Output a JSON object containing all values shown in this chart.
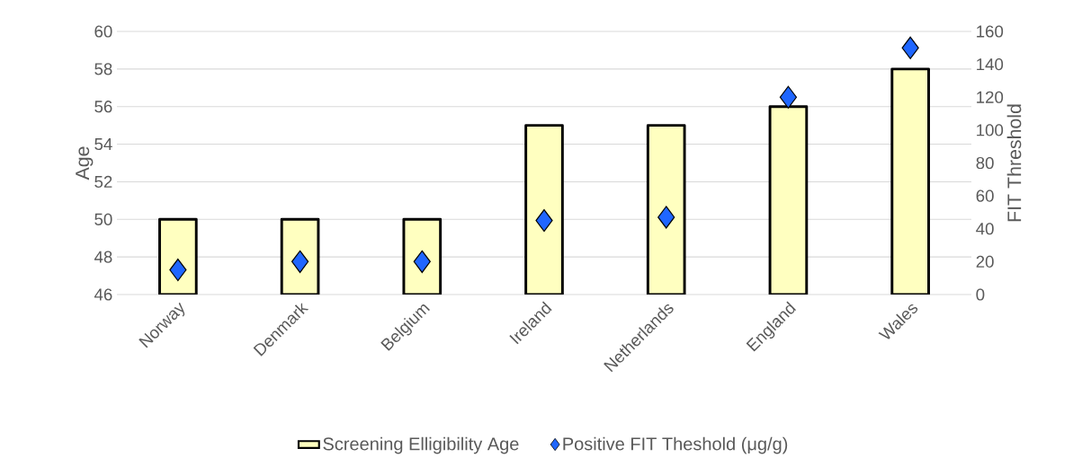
{
  "chart_data": {
    "type": "bar",
    "categories": [
      "Norway",
      "Denmark",
      "Belgium",
      "Ireland",
      "Netherlands",
      "England",
      "Wales"
    ],
    "ylabel": "Age",
    "y2label": "FIT Threshold",
    "ylim": [
      46,
      60
    ],
    "yticks": [
      46,
      48,
      50,
      52,
      54,
      56,
      58,
      60
    ],
    "y2lim": [
      0,
      160
    ],
    "y2ticks": [
      0,
      20,
      40,
      60,
      80,
      100,
      120,
      140,
      160
    ],
    "grid": "y",
    "legend": "bottom",
    "marker": "diamond",
    "series": [
      {
        "name": "Screening Elligibility Age",
        "color": "#ffffc0",
        "values": [
          50,
          50,
          50,
          55,
          55,
          56,
          58
        ]
      },
      {
        "name": "Positive FIT Theshold (μg/g)",
        "type": "scatter",
        "axis": "y2",
        "color": "#1f66ff",
        "values": [
          15,
          20,
          20,
          45,
          47,
          120,
          150
        ]
      }
    ]
  }
}
